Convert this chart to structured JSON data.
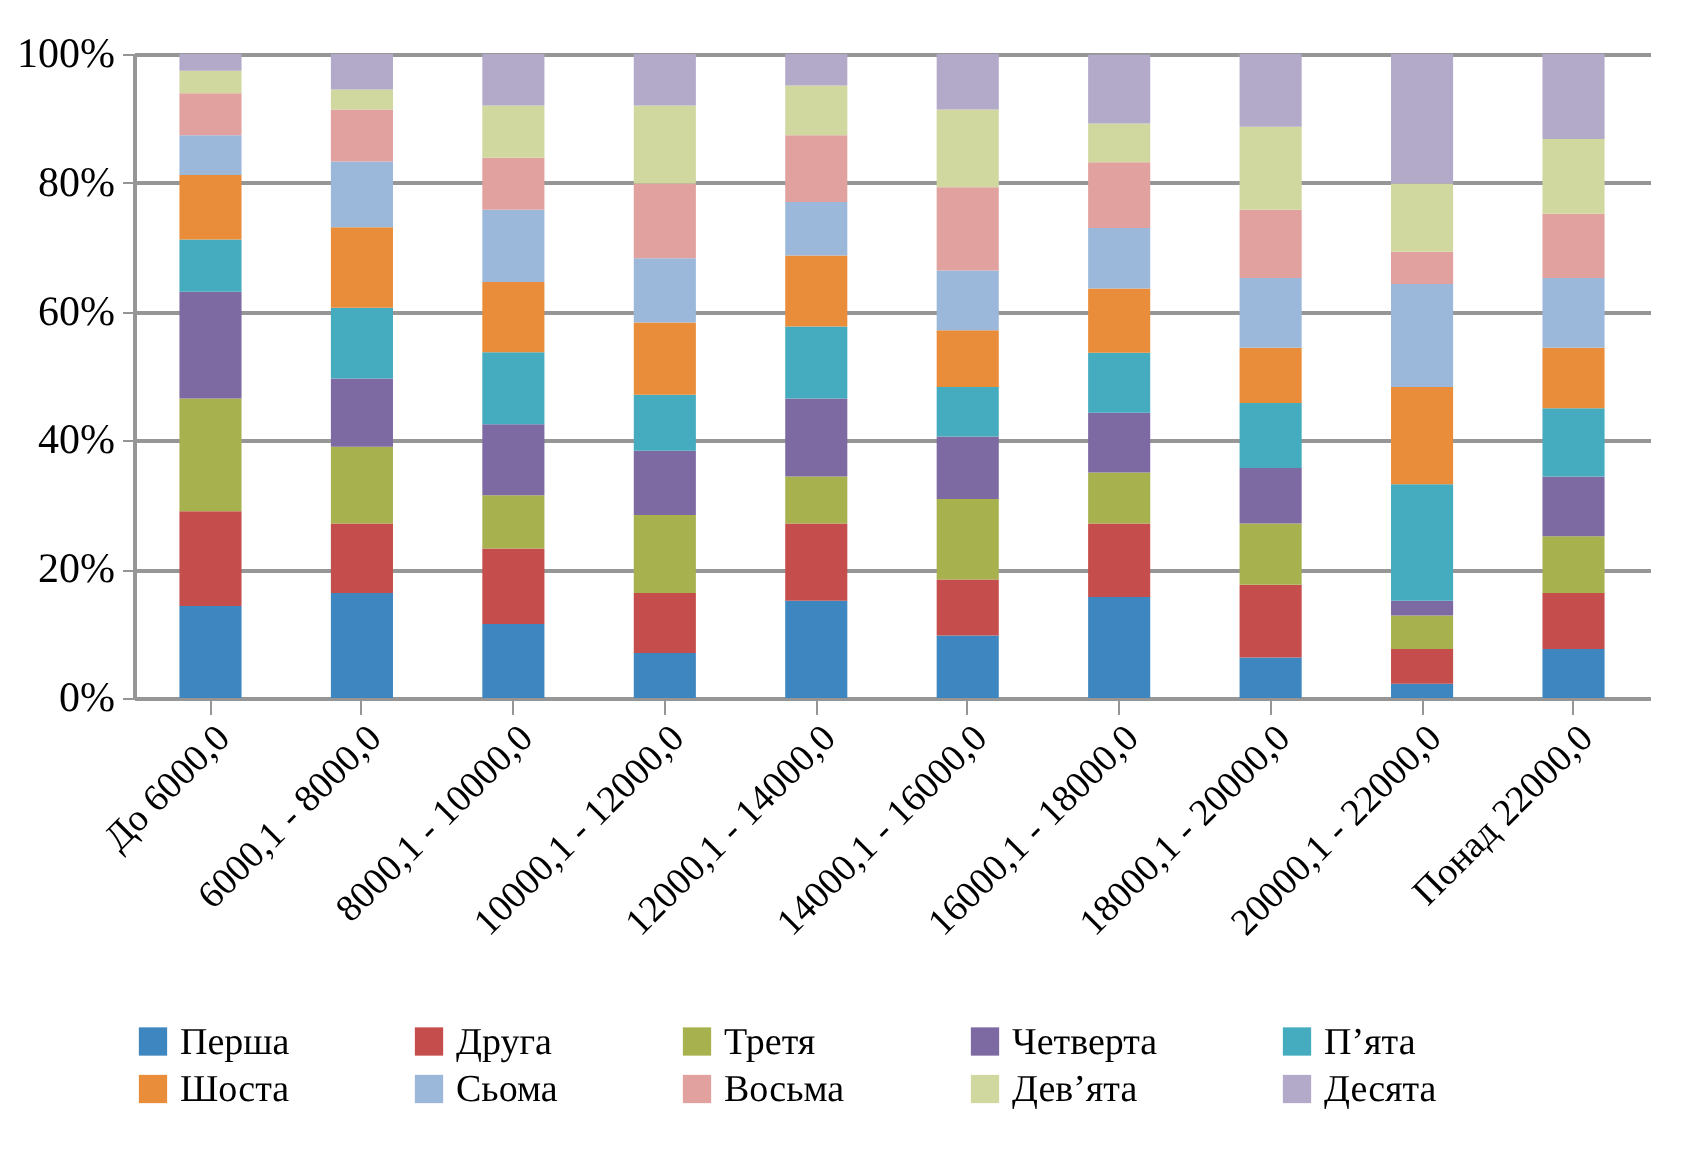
{
  "chart_data": {
    "type": "bar",
    "stacked": true,
    "legend": "bottom",
    "grid": "y",
    "categories": [
      "До 6000,0",
      "6000,1 - 8000,0",
      "8000,1 - 10000,0",
      "10000,1 - 12000,0",
      "12000,1 - 14000,0",
      "14000,1 - 16000,0",
      "16000,1 - 18000,0",
      "18000,1 - 20000,0",
      "20000,1 - 22000,0",
      "Понад 22000,0"
    ],
    "ylim": [
      0,
      100
    ],
    "yticks": [
      {
        "value": 0,
        "label": "0%"
      },
      {
        "value": 20,
        "label": "20%"
      },
      {
        "value": 40,
        "label": "40%"
      },
      {
        "value": 60,
        "label": "60%"
      },
      {
        "value": 80,
        "label": "80%"
      },
      {
        "value": 100,
        "label": "100%"
      }
    ],
    "series": [
      {
        "name": "Перша",
        "color": "#3e86bf",
        "values": [
          14.3,
          16.3,
          11.5,
          7.0,
          15.1,
          9.7,
          15.7,
          6.3,
          2.2,
          7.6
        ]
      },
      {
        "name": "Друга",
        "color": "#c54d4b",
        "values": [
          14.7,
          10.8,
          11.7,
          9.3,
          12.0,
          8.7,
          11.4,
          11.3,
          5.4,
          8.7
        ]
      },
      {
        "name": "Третя",
        "color": "#a7b24f",
        "values": [
          17.5,
          11.9,
          8.3,
          12.1,
          7.3,
          12.5,
          7.9,
          9.5,
          5.2,
          8.8
        ]
      },
      {
        "name": "Четверта",
        "color": "#7e6aa2",
        "values": [
          16.6,
          10.6,
          11.0,
          10.0,
          12.1,
          9.7,
          9.3,
          8.6,
          2.3,
          9.3
        ]
      },
      {
        "name": "П’ята",
        "color": "#45abbe",
        "values": [
          8.1,
          11.0,
          11.2,
          8.7,
          11.2,
          7.7,
          9.3,
          10.1,
          18.1,
          10.6
        ]
      },
      {
        "name": "Шоста",
        "color": "#ea8d3a",
        "values": [
          10.0,
          12.5,
          10.9,
          11.2,
          11.0,
          8.8,
          10.0,
          8.6,
          15.1,
          9.4
        ]
      },
      {
        "name": "Сьома",
        "color": "#9bb8db",
        "values": [
          6.2,
          10.2,
          11.2,
          10.0,
          8.3,
          9.3,
          9.4,
          10.8,
          16.0,
          10.8
        ]
      },
      {
        "name": "Восьма",
        "color": "#e0a19f",
        "values": [
          6.5,
          8.1,
          8.1,
          11.6,
          10.4,
          12.9,
          10.2,
          10.6,
          5.0,
          10.0
        ]
      },
      {
        "name": "Дев’ята",
        "color": "#d0d79f",
        "values": [
          3.5,
          3.1,
          8.1,
          12.1,
          7.7,
          12.1,
          6.0,
          12.9,
          10.6,
          11.6
        ]
      },
      {
        "name": "Десята",
        "color": "#b3a9c9",
        "values": [
          2.6,
          5.5,
          8.0,
          8.0,
          4.9,
          8.6,
          10.7,
          11.3,
          20.1,
          13.2
        ]
      }
    ]
  }
}
